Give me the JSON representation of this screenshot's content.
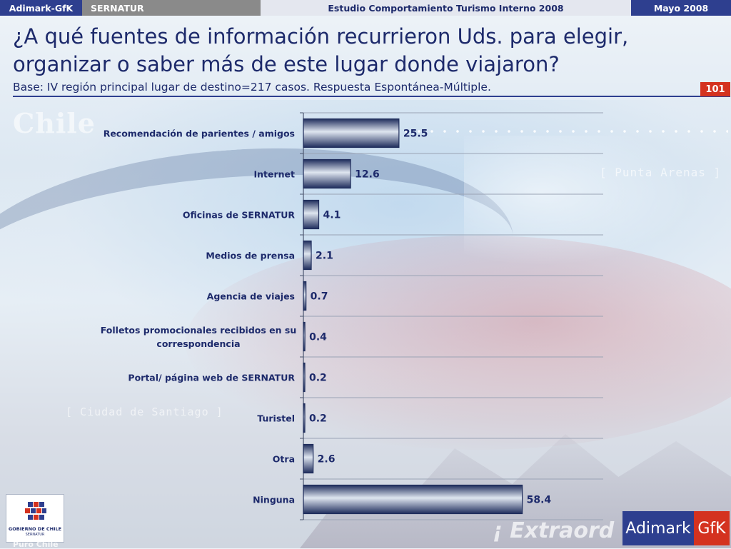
{
  "header": {
    "company": "Adimark-GfK",
    "client": "SERNATUR",
    "study": "Estudio Comportamiento Turismo Interno 2008",
    "date": "Mayo 2008"
  },
  "title": "¿A qué fuentes de información recurrieron Uds. para elegir, organizar o saber más de este lugar donde viajaron?",
  "base_text": "Base: IV región principal lugar de destino=217 casos.  Respuesta Espontánea-Múltiple.",
  "page_number": "101",
  "background_text": {
    "chile": "Chile",
    "punta_arenas": "[ Punta Arenas ]",
    "ciudad": "[ Ciudad de Santiago ]",
    "extra": "¡ Extraord",
    "puro_chile": "Puro Chile"
  },
  "logos": {
    "gobierno_line1": "GOBIERNO DE CHILE",
    "gobierno_line2": "SERNATUR",
    "adimark": "Adimark",
    "gfk": "GfK"
  },
  "chart_data": {
    "type": "bar",
    "orientation": "horizontal",
    "categories": [
      [
        "Recomendación de parientes / amigos"
      ],
      [
        "Internet"
      ],
      [
        "Oficinas de SERNATUR"
      ],
      [
        "Medios de prensa"
      ],
      [
        "Agencia de viajes"
      ],
      [
        "Folletos promocionales recibidos en su",
        "correspondencia"
      ],
      [
        "Portal/ página web de SERNATUR"
      ],
      [
        "Turistel"
      ],
      [
        "Otra"
      ],
      [
        "Ninguna"
      ]
    ],
    "values": [
      25.5,
      12.6,
      4.1,
      2.1,
      0.7,
      0.4,
      0.2,
      0.2,
      2.6,
      58.4
    ],
    "xlim": [
      0,
      80
    ],
    "grid": true,
    "colors": {
      "bar_dark": "#1f2d5c",
      "bar_light": "#dfe6f0",
      "text": "#1d2a6b"
    }
  }
}
